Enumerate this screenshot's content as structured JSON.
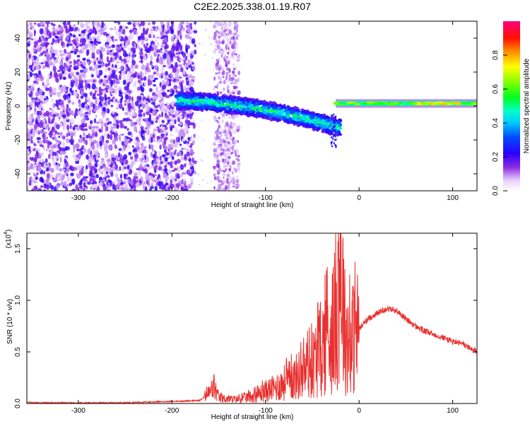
{
  "title": "C2E2.2025.338.01.19.R07",
  "chart_data": [
    {
      "type": "heatmap",
      "title": "C2E2.2025.338.01.19.R07",
      "xlabel": "Height of straight line (km)",
      "ylabel": "Frequency (Hz)",
      "xlim": [
        -355,
        126
      ],
      "ylim": [
        -50,
        50
      ],
      "xticks": [
        -300,
        -200,
        -100,
        0,
        100
      ],
      "yticks": [
        -40,
        -20,
        0,
        20,
        40
      ],
      "colorbar": {
        "label": "Normalized spectral amplitude",
        "range": [
          0.0,
          1.0
        ],
        "ticks": [
          "0.0",
          "0.2",
          "0.4",
          "0.6",
          "0.8"
        ],
        "tick_values": [
          0.0,
          0.2,
          0.4,
          0.6,
          0.8
        ]
      },
      "regions": [
        {
          "name": "scattered noise",
          "x_range": [
            -355,
            -185
          ],
          "f_range": [
            -50,
            50
          ],
          "amplitude": 0.15
        },
        {
          "name": "faint noise band",
          "x_range": [
            -155,
            -128
          ],
          "f_range": [
            -50,
            50
          ],
          "amplitude": 0.1
        },
        {
          "name": "main signal",
          "x_range": [
            -195,
            -20
          ],
          "f_center_start": 3,
          "f_center_end": -13,
          "amplitude": 0.4
        },
        {
          "name": "tail streak",
          "x_range": [
            -30,
            -24
          ],
          "f_range": [
            -25,
            -5
          ],
          "amplitude": 0.2
        },
        {
          "name": "narrow tone",
          "x_range": [
            -25,
            126
          ],
          "f_center": 1.5,
          "amplitude": 0.75
        }
      ]
    },
    {
      "type": "line",
      "xlabel": "Height of straight line (km)",
      "ylabel": "SNR (10 * v/v)",
      "y_scale_label": "(x10",
      "y_scale_exponent": "4",
      "xlim": [
        -355,
        126
      ],
      "ylim": [
        0.0,
        1.65
      ],
      "xticks": [
        -300,
        -200,
        -100,
        0,
        100
      ],
      "yticks": [
        0.0,
        0.5,
        1.0,
        1.5
      ],
      "ytick_labels": [
        "0.0",
        "0.5",
        "1.0",
        "1.5"
      ],
      "series": [
        {
          "name": "SNR",
          "color": "#e8302e",
          "x": [
            -355,
            -300,
            -250,
            -200,
            -170,
            -160,
            -155,
            -150,
            -130,
            -110,
            -100,
            -90,
            -80,
            -70,
            -60,
            -50,
            -45,
            -40,
            -35,
            -30,
            -25,
            -22,
            -20,
            -18,
            -15,
            -10,
            -5,
            0,
            5,
            10,
            20,
            30,
            40,
            50,
            60,
            70,
            80,
            90,
            100,
            110,
            120,
            126
          ],
          "values": [
            0.01,
            0.005,
            0.008,
            0.02,
            0.03,
            0.1,
            0.16,
            0.05,
            0.04,
            0.08,
            0.12,
            0.15,
            0.2,
            0.24,
            0.3,
            0.38,
            0.45,
            0.55,
            0.62,
            0.7,
            0.8,
            1.2,
            1.62,
            1.1,
            0.7,
            0.6,
            0.65,
            0.72,
            0.78,
            0.82,
            0.88,
            0.92,
            0.9,
            0.82,
            0.75,
            0.7,
            0.67,
            0.64,
            0.6,
            0.58,
            0.53,
            0.5
          ]
        }
      ]
    }
  ]
}
